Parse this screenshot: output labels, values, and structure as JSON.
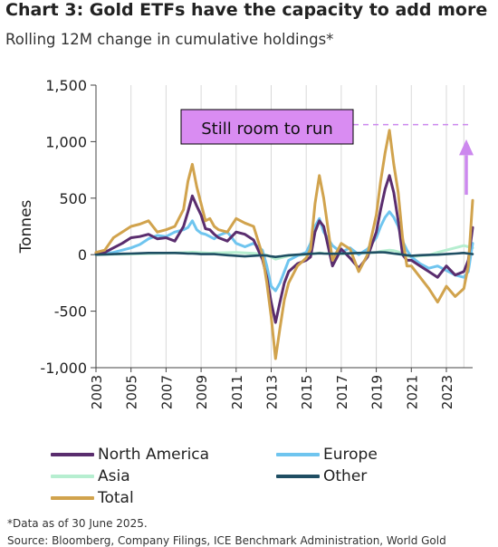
{
  "title": "Chart 3: Gold ETFs have the capacity to add more",
  "subtitle": "Rolling 12M change in cumulative holdings*",
  "annotation": "Still room to run",
  "footnote": "*Data as of 30 June 2025.",
  "source": "Source: Bloomberg, Company Filings, ICE Benchmark Administration, World Gold",
  "colors": {
    "north_america": "#5a2d6e",
    "europe": "#6fc5ef",
    "asia": "#b6eed0",
    "other": "#1f4e63",
    "total": "#d1a34d",
    "annotation_fill": "#d98cf2",
    "arrow": "#cc88ee"
  },
  "chart_data": {
    "type": "line",
    "xlabel": "",
    "ylabel": "Tonnes",
    "xlim": [
      2003.0,
      2024.5
    ],
    "ylim": [
      -1000,
      1500
    ],
    "yticks": [
      1500,
      1000,
      500,
      0,
      -500,
      -1000
    ],
    "ytick_labels": [
      "1,500",
      "1,000",
      "500",
      "0",
      "-500",
      "-1,000"
    ],
    "xticks": [
      2003,
      2005,
      2007,
      2009,
      2011,
      2013,
      2015,
      2017,
      2019,
      2021,
      2023
    ],
    "grid": "vertical",
    "legend_position": "bottom",
    "reference_line": 1150,
    "x": [
      2003.0,
      2003.5,
      2004.0,
      2004.5,
      2005.0,
      2005.5,
      2006.0,
      2006.5,
      2007.0,
      2007.5,
      2008.0,
      2008.25,
      2008.5,
      2008.75,
      2009.0,
      2009.25,
      2009.5,
      2009.75,
      2010.0,
      2010.5,
      2011.0,
      2011.5,
      2012.0,
      2012.5,
      2012.75,
      2013.0,
      2013.25,
      2013.5,
      2013.75,
      2014.0,
      2014.5,
      2015.0,
      2015.25,
      2015.5,
      2015.75,
      2016.0,
      2016.5,
      2017.0,
      2017.5,
      2018.0,
      2018.5,
      2019.0,
      2019.25,
      2019.5,
      2019.75,
      2020.0,
      2020.25,
      2020.5,
      2020.75,
      2021.0,
      2021.5,
      2022.0,
      2022.5,
      2023.0,
      2023.5,
      2024.0,
      2024.25,
      2024.5
    ],
    "series": [
      {
        "name": "North America",
        "key": "north_america",
        "values": [
          10,
          20,
          60,
          100,
          150,
          160,
          180,
          140,
          150,
          120,
          250,
          380,
          520,
          430,
          350,
          230,
          220,
          180,
          150,
          120,
          200,
          180,
          130,
          -40,
          -200,
          -420,
          -600,
          -420,
          -250,
          -150,
          -80,
          -50,
          -20,
          200,
          300,
          250,
          -100,
          50,
          -30,
          -120,
          -20,
          200,
          400,
          580,
          700,
          550,
          300,
          0,
          -50,
          -50,
          -100,
          -150,
          -200,
          -100,
          -180,
          -150,
          -50,
          240
        ]
      },
      {
        "name": "Europe",
        "key": "europe",
        "values": [
          5,
          10,
          20,
          40,
          60,
          90,
          140,
          170,
          160,
          200,
          220,
          240,
          300,
          220,
          190,
          180,
          160,
          140,
          170,
          200,
          100,
          70,
          100,
          40,
          -100,
          -280,
          -320,
          -250,
          -150,
          -50,
          -10,
          20,
          100,
          250,
          320,
          200,
          80,
          20,
          60,
          0,
          50,
          150,
          250,
          330,
          380,
          330,
          250,
          120,
          40,
          -20,
          -80,
          -120,
          -100,
          -140,
          -180,
          -200,
          -150,
          100
        ]
      },
      {
        "name": "Asia",
        "key": "asia",
        "values": [
          0,
          2,
          4,
          5,
          6,
          8,
          10,
          12,
          14,
          16,
          18,
          20,
          22,
          20,
          18,
          16,
          14,
          15,
          16,
          18,
          20,
          15,
          12,
          5,
          -5,
          -20,
          -40,
          -30,
          -20,
          -10,
          -5,
          0,
          5,
          10,
          15,
          12,
          10,
          8,
          10,
          12,
          15,
          20,
          30,
          35,
          40,
          35,
          25,
          10,
          -10,
          -20,
          -10,
          -5,
          20,
          40,
          60,
          80,
          70,
          60
        ]
      },
      {
        "name": "Other",
        "key": "other",
        "values": [
          0,
          2,
          5,
          8,
          10,
          12,
          15,
          15,
          15,
          15,
          12,
          10,
          10,
          8,
          5,
          5,
          5,
          5,
          2,
          -5,
          -10,
          -15,
          -10,
          -5,
          -8,
          -15,
          -20,
          -15,
          -10,
          -5,
          0,
          5,
          8,
          10,
          12,
          10,
          8,
          10,
          12,
          15,
          18,
          20,
          22,
          20,
          15,
          10,
          5,
          0,
          -5,
          -10,
          -5,
          -2,
          0,
          5,
          10,
          15,
          10,
          5
        ]
      },
      {
        "name": "Total",
        "key": "total",
        "values": [
          20,
          40,
          150,
          200,
          250,
          270,
          300,
          200,
          220,
          250,
          400,
          650,
          800,
          600,
          450,
          300,
          320,
          250,
          220,
          200,
          320,
          280,
          250,
          0,
          -250,
          -550,
          -920,
          -650,
          -400,
          -250,
          -100,
          -30,
          50,
          450,
          700,
          500,
          -50,
          100,
          50,
          -150,
          0,
          350,
          650,
          900,
          1100,
          800,
          550,
          150,
          -100,
          -100,
          -200,
          -300,
          -420,
          -280,
          -370,
          -300,
          -100,
          480
        ]
      }
    ]
  },
  "legend": {
    "items": [
      {
        "label": "North America",
        "key": "north_america"
      },
      {
        "label": "Europe",
        "key": "europe"
      },
      {
        "label": "Asia",
        "key": "asia"
      },
      {
        "label": "Other",
        "key": "other"
      },
      {
        "label": "Total",
        "key": "total"
      }
    ]
  }
}
